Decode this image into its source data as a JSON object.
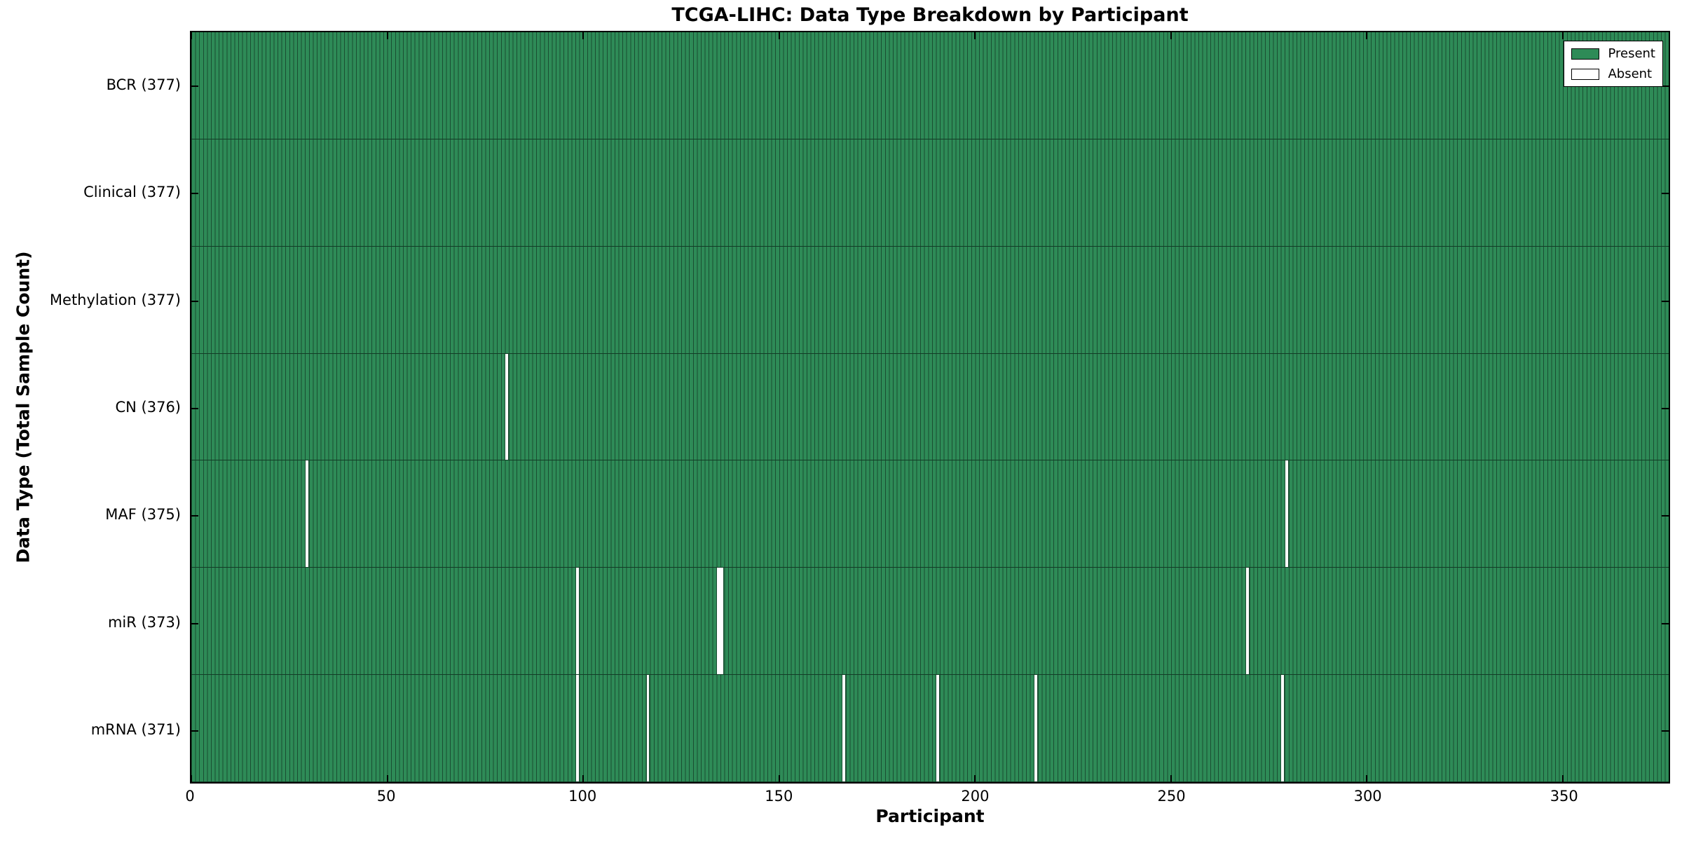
{
  "chart_data": {
    "type": "heatmap",
    "title": "TCGA-LIHC: Data Type Breakdown by Participant",
    "xlabel": "Participant",
    "ylabel": "Data Type (Total Sample Count)",
    "xlim": [
      0,
      377
    ],
    "x_ticks": [
      0,
      50,
      100,
      150,
      200,
      250,
      300,
      350
    ],
    "legend": {
      "position": "upper right",
      "items": [
        {
          "label": "Present",
          "color": "#2e8b57"
        },
        {
          "label": "Absent",
          "color": "#ffffff"
        }
      ]
    },
    "grid": false,
    "rows": [
      {
        "label": "BCR (377)",
        "data_type": "BCR",
        "total": 377,
        "absent_participants": []
      },
      {
        "label": "Clinical (377)",
        "data_type": "Clinical",
        "total": 377,
        "absent_participants": []
      },
      {
        "label": "Methylation (377)",
        "data_type": "Methylation",
        "total": 377,
        "absent_participants": []
      },
      {
        "label": "CN (376)",
        "data_type": "CN",
        "total": 376,
        "absent_participants": [
          80
        ]
      },
      {
        "label": "MAF (375)",
        "data_type": "MAF",
        "total": 375,
        "absent_participants": [
          29,
          279
        ]
      },
      {
        "label": "miR (373)",
        "data_type": "miR",
        "total": 373,
        "absent_participants": [
          98,
          134,
          135,
          269
        ]
      },
      {
        "label": "mRNA (371)",
        "data_type": "mRNA",
        "total": 371,
        "absent_participants": [
          98,
          116,
          166,
          190,
          215,
          278
        ]
      }
    ],
    "colors": {
      "present": "#2e8b57",
      "absent": "#ffffff",
      "bar_edge": "#1a4e32"
    }
  }
}
